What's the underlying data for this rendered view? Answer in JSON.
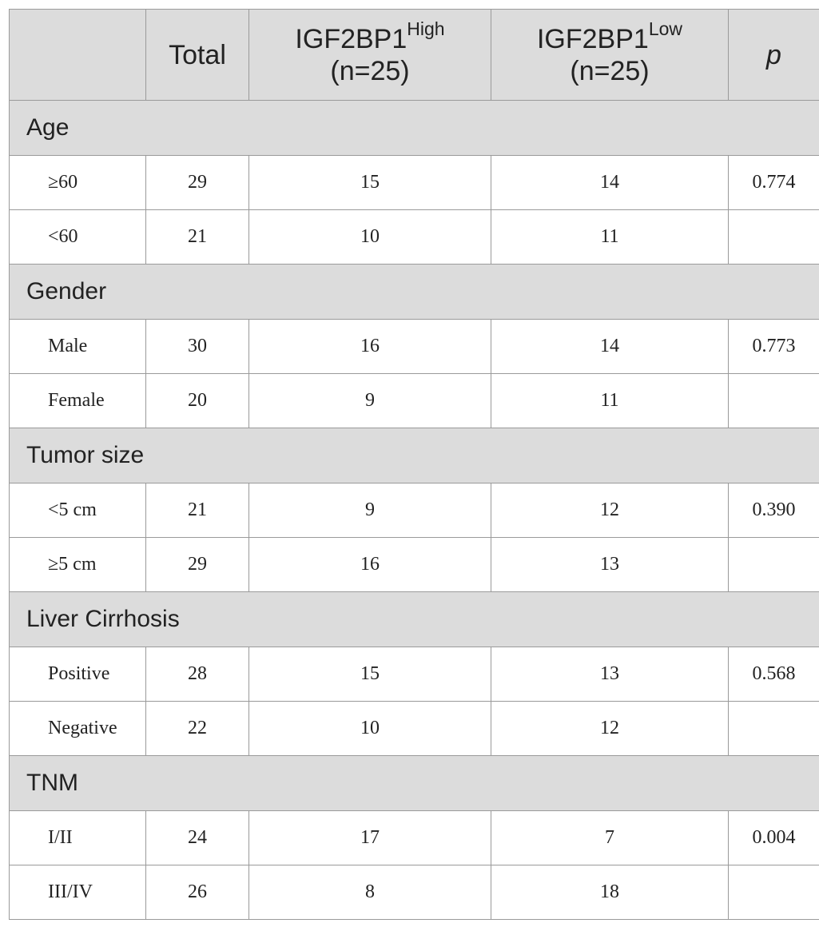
{
  "header": {
    "col0": "",
    "total": "Total",
    "high": {
      "base": "IGF2BP1",
      "sup": "High",
      "n": "(n=25)"
    },
    "low": {
      "base": "IGF2BP1",
      "sup": "Low",
      "n": "(n=25)"
    },
    "p": "p"
  },
  "sections": [
    {
      "title": "Age",
      "rows": [
        {
          "label": "≥60",
          "total": "29",
          "high": "15",
          "low": "14",
          "p": "0.774"
        },
        {
          "label": "<60",
          "total": "21",
          "high": "10",
          "low": "11",
          "p": ""
        }
      ]
    },
    {
      "title": "Gender",
      "rows": [
        {
          "label": "Male",
          "total": "30",
          "high": "16",
          "low": "14",
          "p": "0.773"
        },
        {
          "label": "Female",
          "total": "20",
          "high": "9",
          "low": "11",
          "p": ""
        }
      ]
    },
    {
      "title": "Tumor size",
      "rows": [
        {
          "label": "<5 cm",
          "total": "21",
          "high": "9",
          "low": "12",
          "p": "0.390"
        },
        {
          "label": "≥5 cm",
          "total": "29",
          "high": "16",
          "low": "13",
          "p": ""
        }
      ]
    },
    {
      "title": "Liver Cirrhosis",
      "rows": [
        {
          "label": "Positive",
          "total": "28",
          "high": "15",
          "low": "13",
          "p": "0.568"
        },
        {
          "label": "Negative",
          "total": "22",
          "high": "10",
          "low": "12",
          "p": ""
        }
      ]
    },
    {
      "title": "TNM",
      "rows": [
        {
          "label": "I/II",
          "total": "24",
          "high": "17",
          "low": "7",
          "p": "0.004"
        },
        {
          "label": "III/IV",
          "total": "26",
          "high": "8",
          "low": "18",
          "p": ""
        }
      ]
    }
  ]
}
